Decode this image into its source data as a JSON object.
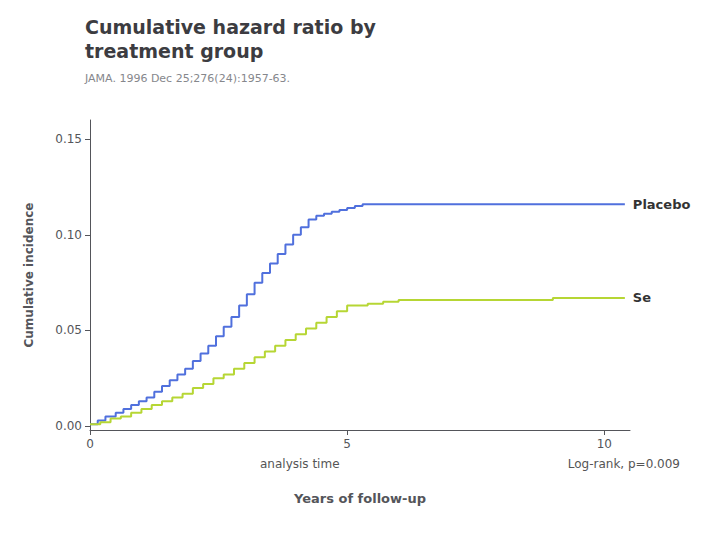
{
  "chart_data": {
    "type": "step",
    "title": "Cumulative hazard ratio by\ntreatment group",
    "subtitle": "JAMA. 1996 Dec 25;276(24):1957-63.",
    "xlabel": "Years of follow-up",
    "ylabel": "Cumulative incidence",
    "annotations": [
      "analysis time",
      "Log-rank, p=0.009"
    ],
    "series": [
      {
        "name": "Placebo",
        "x": [
          0.0,
          0.15,
          0.3,
          0.5,
          0.65,
          0.8,
          0.95,
          1.1,
          1.25,
          1.4,
          1.55,
          1.7,
          1.85,
          2.0,
          2.15,
          2.3,
          2.45,
          2.6,
          2.75,
          2.9,
          3.05,
          3.2,
          3.35,
          3.5,
          3.65,
          3.8,
          3.95,
          4.1,
          4.25,
          4.4,
          4.55,
          4.7,
          4.85,
          5.0,
          5.15,
          5.3,
          6.0,
          7.0,
          8.0,
          9.0,
          10.0,
          10.4
        ],
        "values": [
          0.001,
          0.003,
          0.005,
          0.007,
          0.009,
          0.011,
          0.013,
          0.015,
          0.018,
          0.021,
          0.024,
          0.027,
          0.03,
          0.034,
          0.038,
          0.042,
          0.047,
          0.052,
          0.057,
          0.063,
          0.069,
          0.075,
          0.08,
          0.085,
          0.09,
          0.095,
          0.1,
          0.104,
          0.108,
          0.11,
          0.111,
          0.112,
          0.113,
          0.114,
          0.115,
          0.116,
          0.116,
          0.116,
          0.116,
          0.116,
          0.116,
          0.116
        ]
      },
      {
        "name": "Se",
        "x": [
          0.0,
          0.2,
          0.4,
          0.6,
          0.8,
          1.0,
          1.2,
          1.4,
          1.6,
          1.8,
          2.0,
          2.2,
          2.4,
          2.6,
          2.8,
          3.0,
          3.2,
          3.4,
          3.6,
          3.8,
          4.0,
          4.2,
          4.4,
          4.6,
          4.8,
          5.0,
          5.2,
          5.4,
          5.7,
          6.0,
          7.0,
          8.0,
          9.0,
          10.0,
          10.4
        ],
        "values": [
          0.001,
          0.002,
          0.004,
          0.005,
          0.007,
          0.009,
          0.011,
          0.013,
          0.015,
          0.017,
          0.02,
          0.022,
          0.025,
          0.027,
          0.03,
          0.033,
          0.036,
          0.039,
          0.042,
          0.045,
          0.048,
          0.051,
          0.054,
          0.057,
          0.06,
          0.063,
          0.063,
          0.064,
          0.065,
          0.066,
          0.066,
          0.066,
          0.067,
          0.067,
          0.067
        ]
      }
    ],
    "xlim": [
      0,
      10.5
    ],
    "xticks": [
      0,
      5,
      10
    ],
    "ylim": [
      -0.002,
      0.16
    ],
    "yticks": [
      {
        "value": 0.0,
        "label": "0.00"
      },
      {
        "value": 0.05,
        "label": "0.05"
      },
      {
        "value": 0.1,
        "label": "0.10"
      },
      {
        "value": 0.15,
        "label": "0.15"
      }
    ],
    "grid": false
  }
}
